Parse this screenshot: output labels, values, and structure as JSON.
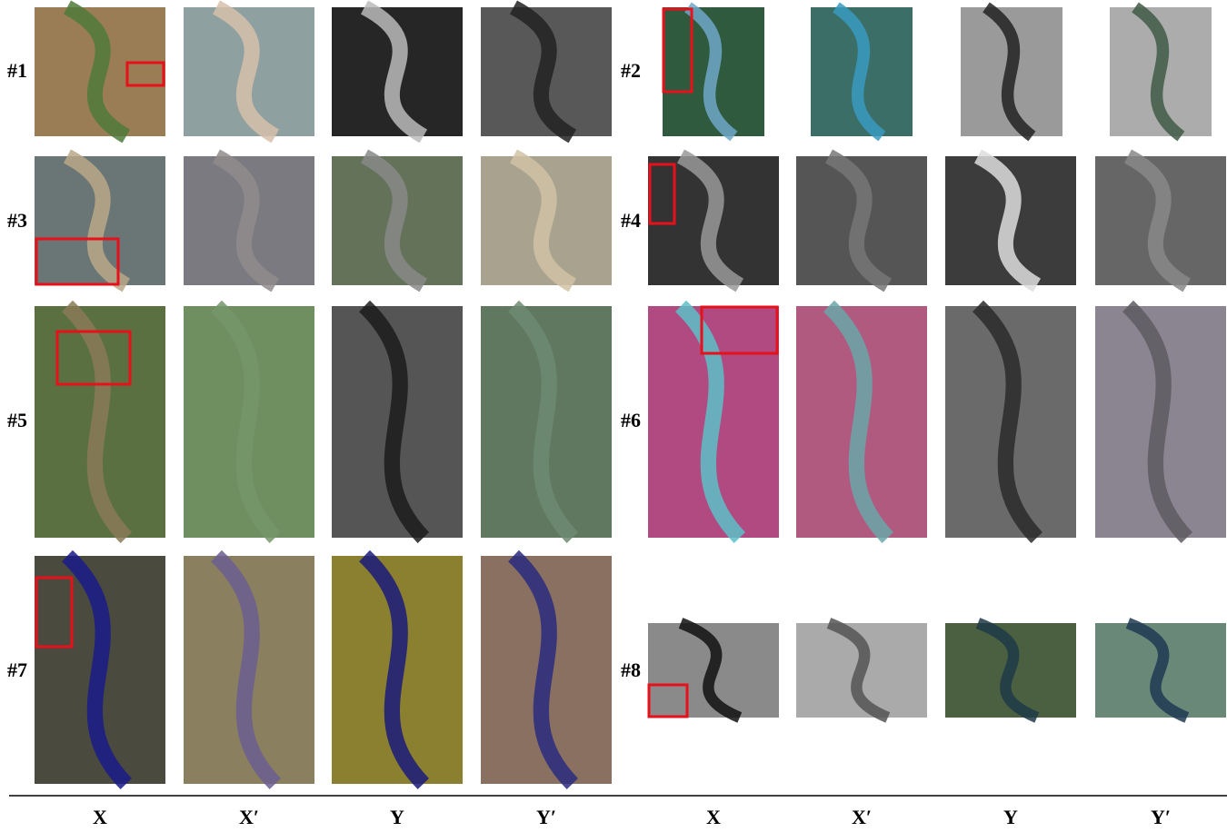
{
  "figure": {
    "panels": [
      {
        "label": "#1"
      },
      {
        "label": "#2"
      },
      {
        "label": "#3"
      },
      {
        "label": "#4"
      },
      {
        "label": "#5"
      },
      {
        "label": "#6"
      },
      {
        "label": "#7"
      },
      {
        "label": "#8"
      }
    ],
    "columns": [
      "X",
      "X′",
      "Y",
      "Y′",
      "X",
      "X′",
      "Y",
      "Y′"
    ]
  }
}
